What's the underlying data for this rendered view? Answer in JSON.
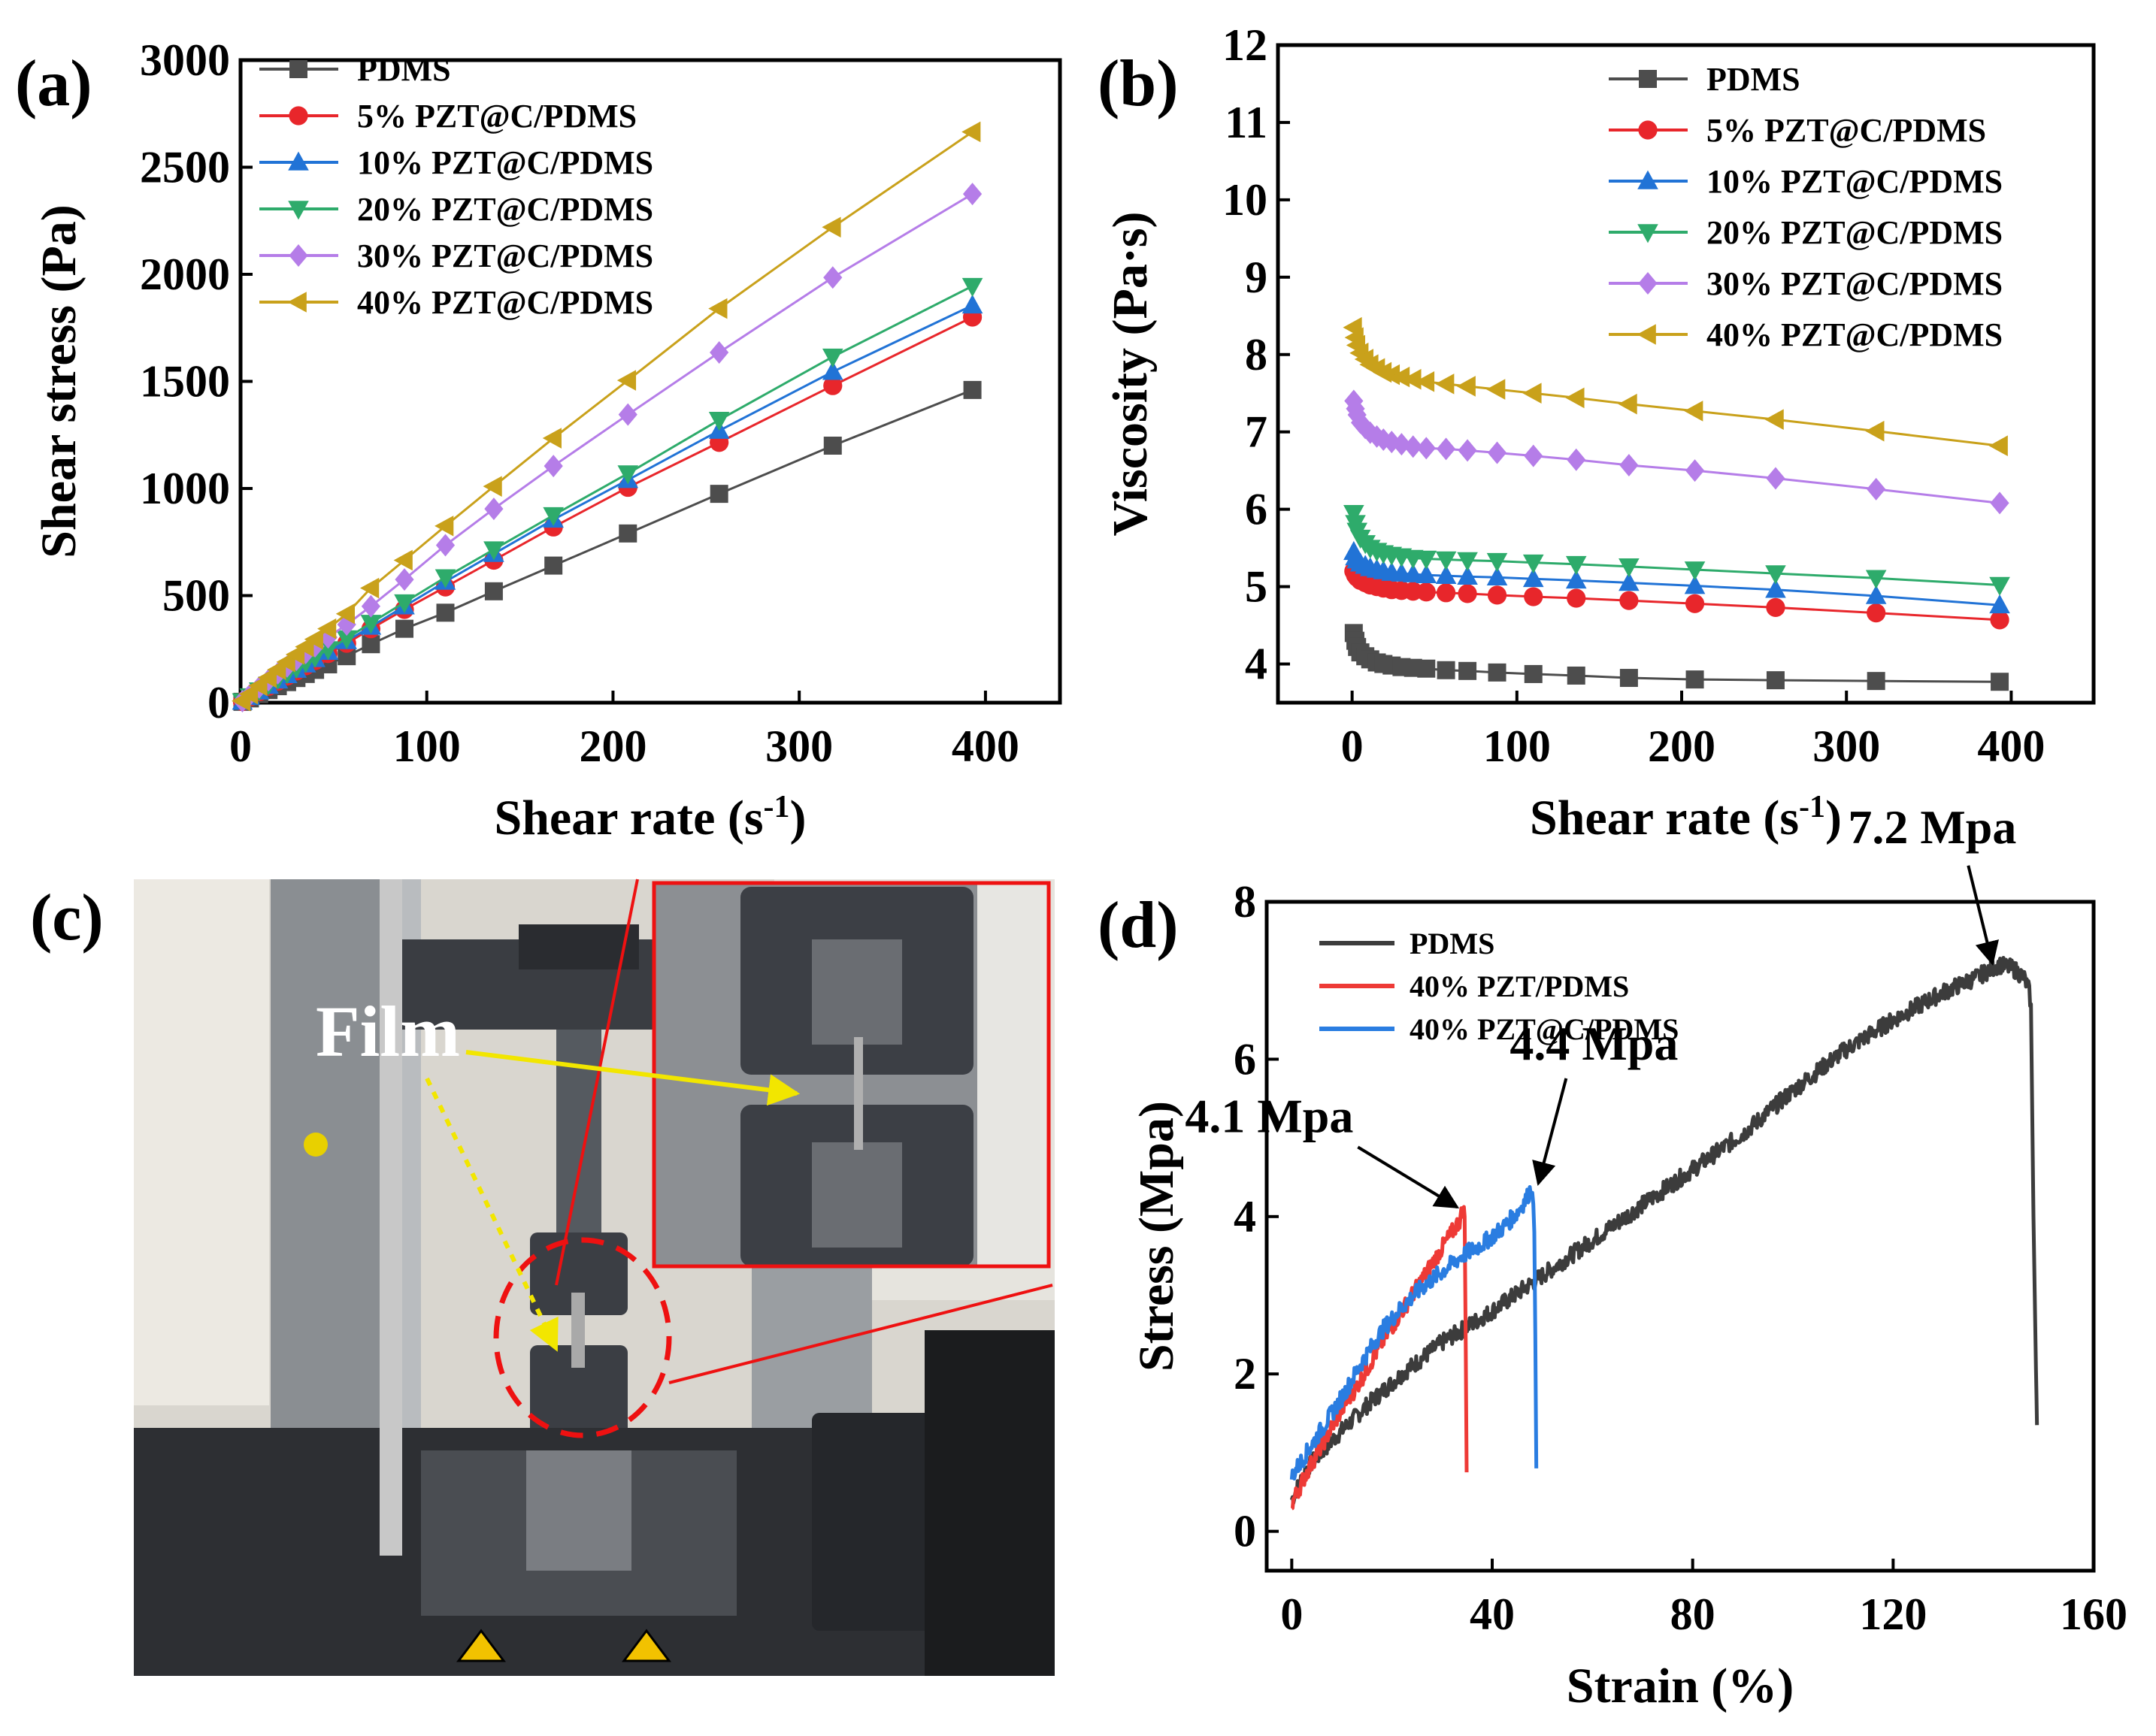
{
  "figure": {
    "panels": {
      "a": {
        "label": "(a)"
      },
      "b": {
        "label": "(b)"
      },
      "c": {
        "label": "(c)",
        "annotation": "Film"
      },
      "d": {
        "label": "(d)"
      }
    }
  },
  "chart_data": [
    {
      "id": "a",
      "type": "line",
      "title": "",
      "xlabel": "Shear rate (s",
      "xlabel_sup": "-1",
      "xlabel_end": ")",
      "ylabel": "Shear stress (Pa)",
      "xlim": [
        0,
        440
      ],
      "ylim": [
        0,
        3000
      ],
      "xticks": [
        0,
        100,
        200,
        300,
        400
      ],
      "yticks": [
        0,
        500,
        1000,
        1500,
        2000,
        2500,
        3000
      ],
      "legend_position": "top-left",
      "x": [
        1,
        5,
        10,
        15,
        20,
        25,
        30,
        35,
        40,
        47,
        57,
        70,
        88,
        110,
        136,
        168,
        208,
        257,
        318,
        393
      ],
      "series": [
        {
          "name": "PDMS",
          "color": "#4d4d4d",
          "marker": "square",
          "values": [
            4,
            20,
            40,
            59,
            77,
            96,
            115,
            134,
            153,
            179,
            217,
            273,
            345,
            420,
            520,
            640,
            790,
            975,
            1200,
            1460
          ]
        },
        {
          "name": "5% PZT@C/PDMS",
          "color": "#e8262b",
          "marker": "circle",
          "values": [
            5,
            26,
            51,
            76,
            100,
            124,
            148,
            172,
            196,
            229,
            277,
            345,
            435,
            540,
            665,
            820,
            1005,
            1215,
            1480,
            1800
          ]
        },
        {
          "name": "10% PZT@C/PDMS",
          "color": "#2173d6",
          "marker": "triangle-up",
          "values": [
            5,
            27,
            53,
            79,
            104,
            129,
            154,
            179,
            204,
            238,
            288,
            355,
            450,
            565,
            695,
            855,
            1040,
            1270,
            1545,
            1855
          ]
        },
        {
          "name": "20% PZT@C/PDMS",
          "color": "#2eab6b",
          "marker": "triangle-down",
          "values": [
            6,
            29,
            57,
            84,
            110,
            136,
            162,
            188,
            213,
            249,
            300,
            372,
            468,
            585,
            715,
            875,
            1070,
            1320,
            1615,
            1945
          ]
        },
        {
          "name": "30% PZT@C/PDMS",
          "color": "#b57de8",
          "marker": "diamond",
          "values": [
            7,
            36,
            71,
            105,
            137,
            169,
            200,
            232,
            263,
            305,
            365,
            450,
            575,
            735,
            905,
            1105,
            1345,
            1635,
            1985,
            2375
          ]
        },
        {
          "name": "40% PZT@C/PDMS",
          "color": "#c9a11b",
          "marker": "triangle-left",
          "values": [
            8,
            40,
            79,
            117,
            154,
            190,
            225,
            261,
            296,
            345,
            415,
            535,
            665,
            825,
            1010,
            1235,
            1505,
            1840,
            2220,
            2665
          ]
        }
      ]
    },
    {
      "id": "b",
      "type": "line",
      "title": "",
      "xlabel": "Shear rate (s",
      "xlabel_sup": "-1",
      "xlabel_end": ")",
      "ylabel": "Viscosity (Pa·s)",
      "xlim": [
        -45,
        450
      ],
      "ylim": [
        3.5,
        12
      ],
      "xticks": [
        0,
        100,
        200,
        300,
        400
      ],
      "yticks": [
        4,
        5,
        6,
        7,
        8,
        9,
        10,
        11,
        12
      ],
      "legend_position": "top-right",
      "x": [
        1,
        2,
        3,
        5,
        8,
        11,
        15,
        19,
        24,
        30,
        37,
        45,
        57,
        70,
        88,
        110,
        136,
        168,
        208,
        257,
        318,
        393
      ],
      "series": [
        {
          "name": "PDMS",
          "color": "#4d4d4d",
          "marker": "square",
          "values": [
            4.4,
            4.3,
            4.22,
            4.15,
            4.1,
            4.06,
            4.02,
            4.0,
            3.98,
            3.96,
            3.95,
            3.94,
            3.92,
            3.91,
            3.89,
            3.87,
            3.85,
            3.82,
            3.8,
            3.79,
            3.78,
            3.77
          ]
        },
        {
          "name": "5% PZT@C/PDMS",
          "color": "#e8262b",
          "marker": "circle",
          "values": [
            5.2,
            5.15,
            5.12,
            5.08,
            5.05,
            5.02,
            5.0,
            4.98,
            4.96,
            4.95,
            4.94,
            4.93,
            4.92,
            4.91,
            4.89,
            4.87,
            4.85,
            4.82,
            4.78,
            4.73,
            4.66,
            4.57
          ]
        },
        {
          "name": "10% PZT@C/PDMS",
          "color": "#2173d6",
          "marker": "triangle-up",
          "values": [
            5.45,
            5.38,
            5.34,
            5.3,
            5.27,
            5.24,
            5.22,
            5.2,
            5.18,
            5.17,
            5.16,
            5.15,
            5.14,
            5.13,
            5.12,
            5.1,
            5.08,
            5.05,
            5.01,
            4.96,
            4.88,
            4.76
          ]
        },
        {
          "name": "20% PZT@C/PDMS",
          "color": "#2eab6b",
          "marker": "triangle-down",
          "values": [
            5.95,
            5.82,
            5.72,
            5.63,
            5.56,
            5.5,
            5.46,
            5.43,
            5.41,
            5.39,
            5.37,
            5.36,
            5.35,
            5.34,
            5.33,
            5.31,
            5.29,
            5.26,
            5.22,
            5.17,
            5.11,
            5.02
          ]
        },
        {
          "name": "30% PZT@C/PDMS",
          "color": "#b57de8",
          "marker": "diamond",
          "values": [
            7.4,
            7.3,
            7.22,
            7.12,
            7.05,
            6.99,
            6.94,
            6.9,
            6.87,
            6.84,
            6.81,
            6.79,
            6.78,
            6.76,
            6.73,
            6.69,
            6.64,
            6.57,
            6.5,
            6.4,
            6.26,
            6.08
          ]
        },
        {
          "name": "40% PZT@C/PDMS",
          "color": "#c9a11b",
          "marker": "triangle-left",
          "values": [
            8.35,
            8.22,
            8.12,
            8.02,
            7.94,
            7.87,
            7.82,
            7.77,
            7.74,
            7.71,
            7.68,
            7.65,
            7.62,
            7.59,
            7.55,
            7.5,
            7.44,
            7.36,
            7.27,
            7.16,
            7.01,
            6.82
          ]
        }
      ]
    },
    {
      "id": "d",
      "type": "line",
      "title": "",
      "xlabel": "Strain (%)",
      "ylabel": "Stress (Mpa)",
      "xlim": [
        -5,
        160
      ],
      "ylim": [
        -0.5,
        8
      ],
      "xticks": [
        0,
        40,
        80,
        120,
        160
      ],
      "yticks": [
        0,
        2,
        4,
        6,
        8
      ],
      "legend_position": "top-left",
      "series": [
        {
          "name": "PDMS",
          "color": "#3c3c3c",
          "x": [
            0,
            3,
            8,
            15,
            22,
            30,
            40,
            50,
            60,
            70,
            80,
            90,
            100,
            110,
            120,
            130,
            137,
            141,
            144,
            146,
            147,
            147.5,
            148,
            148.5,
            148.7
          ],
          "y": [
            0.4,
            0.8,
            1.15,
            1.6,
            2.0,
            2.4,
            2.8,
            3.25,
            3.7,
            4.15,
            4.6,
            5.05,
            5.6,
            6.1,
            6.5,
            6.85,
            7.05,
            7.2,
            7.15,
            7.05,
            6.9,
            6.7,
            4.0,
            2.0,
            1.35
          ]
        },
        {
          "name": "40% PZT/PDMS",
          "color": "#ee3a36",
          "x": [
            0,
            3,
            6,
            10,
            14,
            18,
            22,
            26,
            30,
            32,
            33.5,
            34.2,
            34.5,
            34.7,
            34.9
          ],
          "y": [
            0.35,
            0.75,
            1.1,
            1.55,
            1.95,
            2.4,
            2.8,
            3.2,
            3.6,
            3.8,
            3.95,
            4.1,
            4.0,
            2.5,
            0.75
          ]
        },
        {
          "name": "40% PZT@C/PDMS",
          "color": "#2a7de1",
          "x": [
            0,
            3,
            6,
            10,
            14,
            18,
            22,
            26,
            30,
            34,
            38,
            42,
            45,
            47,
            48,
            48.4,
            48.6,
            48.8
          ],
          "y": [
            0.7,
            1.0,
            1.3,
            1.7,
            2.15,
            2.55,
            2.85,
            3.1,
            3.3,
            3.5,
            3.65,
            3.85,
            4.05,
            4.25,
            4.4,
            3.8,
            2.5,
            0.8
          ]
        }
      ],
      "annotations": [
        {
          "text": "4.1 Mpa",
          "x": 34.2,
          "y": 4.1
        },
        {
          "text": "4.4 Mpa",
          "x": 48,
          "y": 4.4
        },
        {
          "text": "7.2 Mpa",
          "x": 141,
          "y": 7.2
        }
      ]
    }
  ]
}
